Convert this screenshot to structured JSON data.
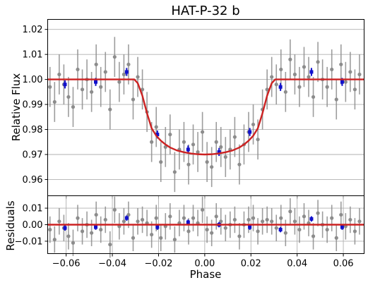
{
  "chart_data": [
    {
      "type": "scatter",
      "title": "HAT-P-32 b",
      "xlabel": "",
      "ylabel": "Relative Flux",
      "xlim": [
        -0.068,
        0.069
      ],
      "ylim": [
        0.9535,
        1.024
      ],
      "grid": "horizontal",
      "x_ticks": [
        -0.06,
        -0.04,
        -0.02,
        0.0,
        0.02,
        0.04,
        0.06
      ],
      "y_ticks": [
        0.96,
        0.97,
        0.98,
        0.99,
        1.0,
        1.01,
        1.02
      ],
      "y_tick_labels": [
        "0.96",
        "0.97",
        "0.98",
        "0.99",
        "1.00",
        "1.01",
        "1.02"
      ],
      "colors": {
        "raw": "#8c8c8c",
        "binned": "#1010cc",
        "model": "#cc2222"
      },
      "series": [
        {
          "type": "scatter-errorbar",
          "x": [
            -0.067,
            -0.065,
            -0.063,
            -0.061,
            -0.059,
            -0.057,
            -0.055,
            -0.053,
            -0.051,
            -0.049,
            -0.047,
            -0.045,
            -0.043,
            -0.041,
            -0.039,
            -0.037,
            -0.035,
            -0.033,
            -0.031,
            -0.029,
            -0.027,
            -0.025,
            -0.023,
            -0.021,
            -0.019,
            -0.017,
            -0.015,
            -0.013,
            -0.011,
            -0.009,
            -0.007,
            -0.005,
            -0.003,
            -0.001,
            0.001,
            0.003,
            0.005,
            0.007,
            0.009,
            0.011,
            0.013,
            0.015,
            0.017,
            0.019,
            0.021,
            0.023,
            0.025,
            0.027,
            0.029,
            0.031,
            0.033,
            0.035,
            0.037,
            0.039,
            0.041,
            0.043,
            0.045,
            0.047,
            0.049,
            0.051,
            0.053,
            0.055,
            0.057,
            0.059,
            0.061,
            0.063,
            0.065,
            0.067
          ],
          "y": [
            0.997,
            0.991,
            1.002,
            0.998,
            0.993,
            0.989,
            1.004,
            0.996,
            1.0,
            0.995,
            1.006,
            0.997,
            1.003,
            0.988,
            1.009,
            0.999,
            1.002,
            1.006,
            0.992,
            1.001,
            0.996,
            0.987,
            0.975,
            0.981,
            0.967,
            0.973,
            0.978,
            0.963,
            0.972,
            0.975,
            0.966,
            0.974,
            0.971,
            0.979,
            0.967,
            0.965,
            0.975,
            0.973,
            0.969,
            0.972,
            0.977,
            0.966,
            0.974,
            0.979,
            0.982,
            0.976,
            0.988,
            0.996,
            1.001,
            0.998,
            1.004,
            0.995,
            1.008,
            1.002,
            0.997,
            1.005,
            1.001,
            0.993,
            1.007,
            1.0,
            0.997,
            1.004,
            0.992,
            1.006,
            0.999,
            1.003,
            0.996,
            1.002
          ],
          "yerr": 0.008
        },
        {
          "type": "scatter-errorbar",
          "x": [
            -0.0605,
            -0.0472,
            -0.0338,
            -0.0205,
            -0.0072,
            0.0062,
            0.0195,
            0.0328,
            0.0462,
            0.0595
          ],
          "y": [
            0.998,
            0.999,
            1.003,
            0.978,
            0.972,
            0.971,
            0.979,
            0.997,
            1.003,
            0.999
          ],
          "yerr": 0.0016
        },
        {
          "type": "line",
          "x": [
            -0.068,
            -0.0305,
            -0.029,
            -0.027,
            -0.025,
            -0.023,
            -0.021,
            -0.019,
            -0.017,
            -0.015,
            -0.012,
            -0.009,
            -0.006,
            -0.003,
            0.0,
            0.003,
            0.006,
            0.009,
            0.012,
            0.015,
            0.017,
            0.019,
            0.021,
            0.023,
            0.025,
            0.027,
            0.029,
            0.0305,
            0.069
          ],
          "y": [
            1.0,
            1.0,
            0.9985,
            0.9935,
            0.9865,
            0.9805,
            0.9775,
            0.9755,
            0.974,
            0.9728,
            0.9716,
            0.9709,
            0.9704,
            0.9701,
            0.97,
            0.9701,
            0.9704,
            0.9709,
            0.9716,
            0.9728,
            0.974,
            0.9755,
            0.9775,
            0.9805,
            0.9865,
            0.9935,
            0.9985,
            1.0,
            1.0
          ]
        }
      ]
    },
    {
      "type": "scatter",
      "title": "",
      "xlabel": "Phase",
      "ylabel": "Residuals",
      "xlim": [
        -0.068,
        0.069
      ],
      "ylim": [
        -0.0175,
        0.0175
      ],
      "grid": "both",
      "x_ticks": [
        -0.06,
        -0.04,
        -0.02,
        0.0,
        0.02,
        0.04,
        0.06
      ],
      "x_tick_labels": [
        "−0.06",
        "−0.04",
        "−0.02",
        "0.00",
        "0.02",
        "0.04",
        "0.06"
      ],
      "y_ticks": [
        -0.01,
        0.0,
        0.01
      ],
      "y_tick_labels": [
        "−0.01",
        "0.00",
        "0.01"
      ],
      "series": [
        {
          "type": "scatter-errorbar",
          "x": [
            -0.067,
            -0.065,
            -0.063,
            -0.061,
            -0.059,
            -0.057,
            -0.055,
            -0.053,
            -0.051,
            -0.049,
            -0.047,
            -0.045,
            -0.043,
            -0.041,
            -0.039,
            -0.037,
            -0.035,
            -0.033,
            -0.031,
            -0.029,
            -0.027,
            -0.025,
            -0.023,
            -0.021,
            -0.019,
            -0.017,
            -0.015,
            -0.013,
            -0.011,
            -0.009,
            -0.007,
            -0.005,
            -0.003,
            -0.001,
            0.001,
            0.003,
            0.005,
            0.007,
            0.009,
            0.011,
            0.013,
            0.015,
            0.017,
            0.019,
            0.021,
            0.023,
            0.025,
            0.027,
            0.029,
            0.031,
            0.033,
            0.035,
            0.037,
            0.039,
            0.041,
            0.043,
            0.045,
            0.047,
            0.049,
            0.051,
            0.053,
            0.055,
            0.057,
            0.059,
            0.061,
            0.063,
            0.065,
            0.067
          ],
          "y": [
            -0.003,
            -0.009,
            0.002,
            -0.002,
            -0.007,
            -0.011,
            0.004,
            -0.004,
            0.0,
            -0.005,
            0.006,
            -0.003,
            0.003,
            -0.012,
            0.009,
            -0.001,
            0.002,
            0.006,
            -0.008,
            0.002,
            0.003,
            0.001,
            -0.006,
            0.004,
            -0.008,
            -0.001,
            0.005,
            -0.009,
            0.001,
            0.004,
            -0.004,
            0.004,
            0.001,
            0.009,
            -0.003,
            -0.005,
            0.005,
            0.002,
            -0.002,
            0.0,
            0.003,
            -0.007,
            0.0,
            0.003,
            0.004,
            -0.004,
            0.002,
            0.003,
            0.002,
            -0.002,
            0.004,
            -0.005,
            0.008,
            0.002,
            -0.003,
            0.005,
            0.001,
            -0.007,
            0.007,
            0.0,
            -0.003,
            0.004,
            -0.008,
            0.006,
            -0.001,
            0.003,
            -0.004,
            0.002
          ],
          "yerr": 0.008
        },
        {
          "type": "scatter-errorbar",
          "x": [
            -0.0605,
            -0.0472,
            -0.0338,
            -0.0205,
            -0.0072,
            0.0062,
            0.0195,
            0.0328,
            0.0462,
            0.0595
          ],
          "y": [
            -0.002,
            -0.0015,
            0.004,
            -0.0015,
            0.0015,
            0.0,
            -0.0015,
            -0.003,
            0.0035,
            -0.0015
          ],
          "yerr": 0.0016
        },
        {
          "type": "line",
          "x": [
            -0.068,
            0.069
          ],
          "y": [
            0.0,
            0.0
          ]
        }
      ]
    }
  ]
}
